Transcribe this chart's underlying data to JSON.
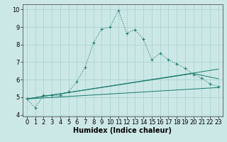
{
  "xlabel": "Humidex (Indice chaleur)",
  "ylabel": "",
  "background_color": "#cce8e6",
  "grid_color": "#aad4d0",
  "line_color": "#1a7a6e",
  "xlim": [
    -0.5,
    23.5
  ],
  "ylim": [
    3.9,
    10.3
  ],
  "x_ticks": [
    0,
    1,
    2,
    3,
    4,
    5,
    6,
    7,
    8,
    9,
    10,
    11,
    12,
    13,
    14,
    15,
    16,
    17,
    18,
    19,
    20,
    21,
    22,
    23
  ],
  "y_ticks": [
    4,
    5,
    6,
    7,
    8,
    9,
    10
  ],
  "series_main": {
    "x": [
      0,
      1,
      2,
      3,
      4,
      5,
      6,
      7,
      8,
      9,
      10,
      11,
      12,
      13,
      14,
      15,
      16,
      17,
      18,
      19,
      20,
      21,
      22,
      23
    ],
    "y": [
      4.9,
      4.4,
      5.1,
      5.1,
      5.1,
      5.3,
      5.9,
      6.7,
      8.1,
      8.9,
      9.0,
      9.95,
      8.65,
      8.85,
      8.3,
      7.15,
      7.5,
      7.15,
      6.9,
      6.65,
      6.3,
      6.1,
      5.75,
      5.6
    ]
  },
  "series_line2": {
    "x": [
      0,
      23
    ],
    "y": [
      4.9,
      6.6
    ]
  },
  "series_line3": {
    "x": [
      0,
      20,
      23
    ],
    "y": [
      4.9,
      6.35,
      6.05
    ]
  },
  "series_line4": {
    "x": [
      0,
      23
    ],
    "y": [
      4.9,
      5.55
    ]
  },
  "xlabel_fontsize": 7,
  "tick_fontsize": 6
}
